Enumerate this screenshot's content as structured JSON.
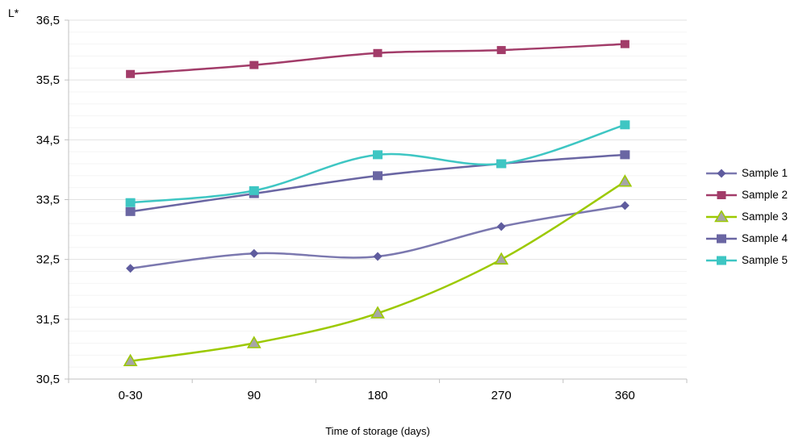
{
  "chart_data": {
    "type": "line",
    "title": "",
    "y_axis_label": "L*",
    "x_axis_label": "Time of storage (days)",
    "categories": [
      "0-30",
      "90",
      "180",
      "270",
      "360"
    ],
    "series": [
      {
        "name": "Sample 1",
        "values": [
          32.35,
          32.6,
          32.55,
          33.05,
          33.4
        ],
        "color": "#7B78AF",
        "marker": "diamond",
        "marker_color": "#5F5C9E",
        "marker_size": 11
      },
      {
        "name": "Sample 2",
        "values": [
          35.6,
          35.75,
          35.95,
          36.0,
          36.1
        ],
        "color": "#A23C69",
        "marker": "square",
        "marker_color": "#A23C69",
        "marker_size": 11
      },
      {
        "name": "Sample 3",
        "values": [
          30.8,
          31.1,
          31.6,
          32.5,
          33.8
        ],
        "color": "#9CC900",
        "marker": "triangle",
        "marker_color": "#A6A6A6",
        "marker_size": 13
      },
      {
        "name": "Sample 4",
        "values": [
          33.3,
          33.6,
          33.9,
          34.1,
          34.25
        ],
        "color": "#6A66A3",
        "marker": "square",
        "marker_color": "#6A66A3",
        "marker_size": 12
      },
      {
        "name": "Sample 5",
        "values": [
          33.45,
          33.65,
          34.25,
          34.1,
          34.75
        ],
        "color": "#3EC6C3",
        "marker": "square",
        "marker_color": "#3EC6C3",
        "marker_size": 12
      }
    ],
    "y_axis": {
      "min": 30.5,
      "max": 36.5,
      "major_step": 1,
      "minor_step": 0.2,
      "tick_labels": [
        "36,5",
        "35,5",
        "34,5",
        "33,5",
        "32,5",
        "31,5",
        "30,5"
      ]
    },
    "legend": {
      "position": "right",
      "items": [
        "Sample 1",
        "Sample 2",
        "Sample 3",
        "Sample 4",
        "Sample 5"
      ]
    },
    "grid": {
      "major_color": "#E2E2E2",
      "minor_color": "#F4F4F4",
      "axis_color": "#C0C0C0",
      "background": "#FFFFFF",
      "text_color": "#000000"
    },
    "smoothed": true
  }
}
